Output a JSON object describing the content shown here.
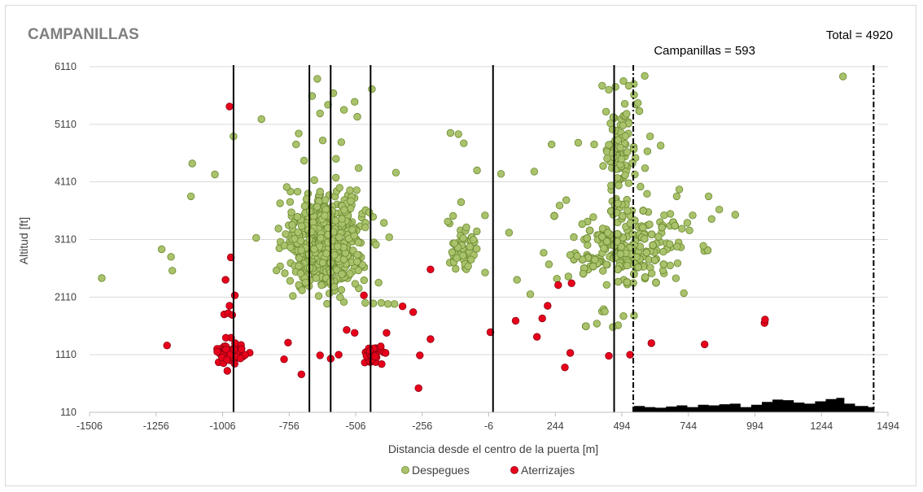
{
  "chart_data": {
    "type": "scatter",
    "title": "CAMPANILLAS",
    "annotations": [
      "Total = 4920",
      "Campanillas = 593"
    ],
    "xlabel": "Distancia desde el centro de la puerta [m]",
    "ylabel": "Altitud [ft]",
    "xlim": [
      -1506,
      1494
    ],
    "ylim": [
      110,
      6110
    ],
    "x_ticks": [
      -1506,
      -1256,
      -1006,
      -756,
      -506,
      -256,
      -6,
      244,
      494,
      744,
      994,
      1244,
      1494
    ],
    "y_ticks": [
      110,
      1110,
      2110,
      3110,
      4110,
      5110,
      6110
    ],
    "grid": "horizontal",
    "legend_position": "bottom",
    "vertical_lines": [
      {
        "x": -965,
        "style": "solid"
      },
      {
        "x": -680,
        "style": "solid"
      },
      {
        "x": -600,
        "style": "solid"
      },
      {
        "x": -450,
        "style": "solid"
      },
      {
        "x": 10,
        "style": "solid"
      },
      {
        "x": 465,
        "style": "solid"
      },
      {
        "x": 537,
        "style": "dash-dot"
      },
      {
        "x": 1440,
        "style": "dash-dot"
      }
    ],
    "terrain_profile": [
      {
        "x": 540,
        "y": 220
      },
      {
        "x": 580,
        "y": 200
      },
      {
        "x": 620,
        "y": 190
      },
      {
        "x": 660,
        "y": 210
      },
      {
        "x": 700,
        "y": 230
      },
      {
        "x": 740,
        "y": 200
      },
      {
        "x": 780,
        "y": 240
      },
      {
        "x": 820,
        "y": 230
      },
      {
        "x": 860,
        "y": 250
      },
      {
        "x": 900,
        "y": 260
      },
      {
        "x": 940,
        "y": 200
      },
      {
        "x": 980,
        "y": 240
      },
      {
        "x": 1020,
        "y": 290
      },
      {
        "x": 1060,
        "y": 330
      },
      {
        "x": 1100,
        "y": 320
      },
      {
        "x": 1140,
        "y": 280
      },
      {
        "x": 1180,
        "y": 260
      },
      {
        "x": 1220,
        "y": 300
      },
      {
        "x": 1260,
        "y": 340
      },
      {
        "x": 1300,
        "y": 360
      },
      {
        "x": 1330,
        "y": 260
      },
      {
        "x": 1370,
        "y": 220
      },
      {
        "x": 1420,
        "y": 200
      }
    ],
    "series": [
      {
        "name": "Despegues",
        "color": "#a9c26b",
        "stroke": "#6b8a30",
        "points": [
          [
            -1460,
            2440
          ],
          [
            -1235,
            2940
          ],
          [
            -1200,
            2810
          ],
          [
            -1195,
            2570
          ],
          [
            -1125,
            3860
          ],
          [
            -1120,
            4430
          ],
          [
            -1035,
            4240
          ],
          [
            -965,
            4900
          ],
          [
            -880,
            3140
          ],
          [
            -860,
            5200
          ],
          [
            -790,
            3740
          ],
          [
            -765,
            4020
          ],
          [
            -730,
            4760
          ],
          [
            -720,
            4950
          ],
          [
            -700,
            4480
          ],
          [
            -670,
            5600
          ],
          [
            -650,
            5900
          ],
          [
            -640,
            5300
          ],
          [
            -630,
            4830
          ],
          [
            -610,
            5450
          ],
          [
            -590,
            5650
          ],
          [
            -580,
            4510
          ],
          [
            -560,
            4800
          ],
          [
            -550,
            5360
          ],
          [
            -510,
            5500
          ],
          [
            -500,
            5240
          ],
          [
            -495,
            4350
          ],
          [
            -470,
            3320
          ],
          [
            -455,
            3580
          ],
          [
            -445,
            5720
          ],
          [
            -430,
            3020
          ],
          [
            -420,
            2360
          ],
          [
            -400,
            3400
          ],
          [
            -380,
            3150
          ],
          [
            -355,
            4270
          ],
          [
            -410,
            2010
          ],
          [
            -440,
            2000
          ],
          [
            -470,
            2010
          ],
          [
            -360,
            1990
          ],
          [
            -385,
            1990
          ],
          [
            -150,
            4960
          ],
          [
            -120,
            4940
          ],
          [
            -100,
            4780
          ],
          [
            -50,
            4310
          ],
          [
            -20,
            3530
          ],
          [
            -140,
            3520
          ],
          [
            -110,
            3760
          ],
          [
            -90,
            3320
          ],
          [
            -160,
            3420
          ],
          [
            40,
            4250
          ],
          [
            70,
            3230
          ],
          [
            100,
            2410
          ],
          [
            150,
            2160
          ],
          [
            165,
            4290
          ],
          [
            200,
            2880
          ],
          [
            220,
            2680
          ],
          [
            230,
            4760
          ],
          [
            250,
            2430
          ],
          [
            260,
            3700
          ],
          [
            300,
            2840
          ],
          [
            330,
            4790
          ],
          [
            390,
            4760
          ],
          [
            420,
            5780
          ],
          [
            445,
            5710
          ],
          [
            470,
            5760
          ],
          [
            500,
            5860
          ],
          [
            520,
            5780
          ],
          [
            540,
            5620
          ],
          [
            580,
            5950
          ],
          [
            590,
            4640
          ],
          [
            600,
            4900
          ],
          [
            640,
            4740
          ],
          [
            700,
            3860
          ],
          [
            710,
            3980
          ],
          [
            740,
            3400
          ],
          [
            760,
            3530
          ],
          [
            800,
            3000
          ],
          [
            820,
            3860
          ],
          [
            860,
            3630
          ],
          [
            920,
            3540
          ],
          [
            1325,
            5940
          ],
          [
            400,
            1650
          ],
          [
            430,
            1860
          ],
          [
            480,
            1620
          ],
          [
            500,
            1780
          ],
          [
            540,
            1790
          ],
          [
            460,
            1590
          ]
        ],
        "clusters": [
          {
            "cx": -620,
            "cy": 3050,
            "sx": 65,
            "sy": 420,
            "n": 650,
            "seed": 11
          },
          {
            "cx": -100,
            "cy": 2900,
            "sx": 28,
            "sy": 200,
            "n": 60,
            "seed": 23
          },
          {
            "cx": 510,
            "cy": 2950,
            "sx": 115,
            "sy": 340,
            "n": 850,
            "seed": 37
          },
          {
            "cx": 490,
            "cy": 4550,
            "sx": 30,
            "sy": 500,
            "n": 90,
            "seed": 41
          }
        ]
      },
      {
        "name": "Aterrizajes",
        "color": "#e8001b",
        "stroke": "#8a0010",
        "points": [
          [
            -1215,
            1270
          ],
          [
            -980,
            5420
          ],
          [
            -975,
            2800
          ],
          [
            -960,
            2140
          ],
          [
            -995,
            2410
          ],
          [
            -980,
            1960
          ],
          [
            -1000,
            1810
          ],
          [
            -985,
            1830
          ],
          [
            -970,
            1800
          ],
          [
            -775,
            1030
          ],
          [
            -760,
            1320
          ],
          [
            -710,
            770
          ],
          [
            -640,
            1100
          ],
          [
            -600,
            1040
          ],
          [
            -570,
            1110
          ],
          [
            -540,
            1540
          ],
          [
            -510,
            1490
          ],
          [
            -475,
            2140
          ],
          [
            -390,
            1490
          ],
          [
            -330,
            1950
          ],
          [
            -290,
            1850
          ],
          [
            -265,
            1100
          ],
          [
            -270,
            530
          ],
          [
            -225,
            1380
          ],
          [
            -225,
            2590
          ],
          [
            0,
            1500
          ],
          [
            95,
            1700
          ],
          [
            175,
            1420
          ],
          [
            195,
            1740
          ],
          [
            215,
            1960
          ],
          [
            255,
            2320
          ],
          [
            280,
            890
          ],
          [
            300,
            1140
          ],
          [
            305,
            2350
          ],
          [
            445,
            1090
          ],
          [
            525,
            1110
          ],
          [
            605,
            1310
          ],
          [
            805,
            1290
          ],
          [
            1030,
            1660
          ],
          [
            1032,
            1720
          ]
        ],
        "clusters": [
          {
            "cx": -980,
            "cy": 1150,
            "sx": 28,
            "sy": 110,
            "n": 55,
            "seed": 53
          },
          {
            "cx": -440,
            "cy": 1100,
            "sx": 25,
            "sy": 90,
            "n": 40,
            "seed": 67
          }
        ]
      }
    ]
  }
}
